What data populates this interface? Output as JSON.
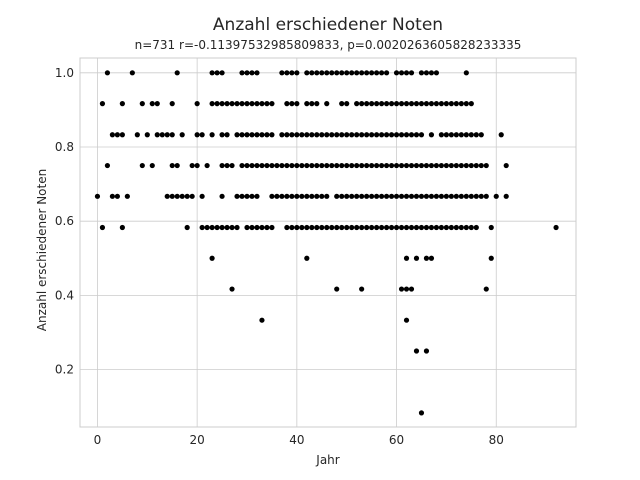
{
  "chart_data": {
    "type": "scatter",
    "title": "Anzahl erschiedener Noten",
    "subtitle": "n=731 r=-0.11397532985809833, p=0.0020263605828233335",
    "xlabel": "Jahr",
    "ylabel": "Anzahl erschiedener Noten",
    "xlim": [
      -3.5,
      96
    ],
    "ylim": [
      0.045,
      1.04
    ],
    "xticks": [
      0,
      20,
      40,
      60,
      80
    ],
    "yticks": [
      0.2,
      0.4,
      0.6,
      0.8,
      1.0
    ],
    "grid": true,
    "legend": "none",
    "point_color": "#000000",
    "points": [
      [
        0,
        0.667
      ],
      [
        1,
        0.583
      ],
      [
        1,
        0.917
      ],
      [
        2,
        1.0
      ],
      [
        2,
        0.75
      ],
      [
        3,
        0.833
      ],
      [
        3,
        0.667
      ],
      [
        4,
        0.833
      ],
      [
        4,
        0.667
      ],
      [
        5,
        0.917
      ],
      [
        5,
        0.833
      ],
      [
        5,
        0.583
      ],
      [
        6,
        0.667
      ],
      [
        7,
        1.0
      ],
      [
        8,
        0.833
      ],
      [
        9,
        0.917
      ],
      [
        9,
        0.75
      ],
      [
        10,
        0.833
      ],
      [
        11,
        0.917
      ],
      [
        11,
        0.75
      ],
      [
        12,
        0.917
      ],
      [
        12,
        0.833
      ],
      [
        13,
        0.833
      ],
      [
        14,
        0.833
      ],
      [
        14,
        0.667
      ],
      [
        15,
        0.917
      ],
      [
        15,
        0.833
      ],
      [
        15,
        0.75
      ],
      [
        15,
        0.667
      ],
      [
        16,
        1.0
      ],
      [
        16,
        0.75
      ],
      [
        16,
        0.667
      ],
      [
        17,
        0.833
      ],
      [
        17,
        0.667
      ],
      [
        18,
        0.667
      ],
      [
        18,
        0.583
      ],
      [
        19,
        0.75
      ],
      [
        19,
        0.667
      ],
      [
        20,
        0.917
      ],
      [
        20,
        0.833
      ],
      [
        20,
        0.75
      ],
      [
        21,
        0.833
      ],
      [
        21,
        0.667
      ],
      [
        21,
        0.583
      ],
      [
        22,
        0.75
      ],
      [
        22,
        0.583
      ],
      [
        23,
        1.0
      ],
      [
        23,
        0.917
      ],
      [
        23,
        0.833
      ],
      [
        23,
        0.583
      ],
      [
        23,
        0.5
      ],
      [
        24,
        1.0
      ],
      [
        24,
        0.917
      ],
      [
        24,
        0.583
      ],
      [
        25,
        1.0
      ],
      [
        25,
        0.917
      ],
      [
        25,
        0.833
      ],
      [
        25,
        0.75
      ],
      [
        25,
        0.667
      ],
      [
        25,
        0.583
      ],
      [
        26,
        0.917
      ],
      [
        26,
        0.833
      ],
      [
        26,
        0.75
      ],
      [
        26,
        0.583
      ],
      [
        27,
        0.917
      ],
      [
        27,
        0.75
      ],
      [
        27,
        0.583
      ],
      [
        27,
        0.417
      ],
      [
        28,
        0.917
      ],
      [
        28,
        0.833
      ],
      [
        28,
        0.667
      ],
      [
        28,
        0.583
      ],
      [
        29,
        1.0
      ],
      [
        29,
        0.917
      ],
      [
        29,
        0.833
      ],
      [
        29,
        0.75
      ],
      [
        29,
        0.667
      ],
      [
        30,
        1.0
      ],
      [
        30,
        0.917
      ],
      [
        30,
        0.833
      ],
      [
        30,
        0.75
      ],
      [
        30,
        0.667
      ],
      [
        30,
        0.583
      ],
      [
        31,
        1.0
      ],
      [
        31,
        0.917
      ],
      [
        31,
        0.833
      ],
      [
        31,
        0.75
      ],
      [
        31,
        0.667
      ],
      [
        31,
        0.583
      ],
      [
        32,
        1.0
      ],
      [
        32,
        0.917
      ],
      [
        32,
        0.833
      ],
      [
        32,
        0.75
      ],
      [
        32,
        0.667
      ],
      [
        32,
        0.583
      ],
      [
        33,
        0.917
      ],
      [
        33,
        0.833
      ],
      [
        33,
        0.75
      ],
      [
        33,
        0.583
      ],
      [
        33,
        0.333
      ],
      [
        34,
        0.917
      ],
      [
        34,
        0.833
      ],
      [
        34,
        0.75
      ],
      [
        34,
        0.583
      ],
      [
        35,
        0.917
      ],
      [
        35,
        0.833
      ],
      [
        35,
        0.75
      ],
      [
        35,
        0.667
      ],
      [
        35,
        0.583
      ],
      [
        36,
        0.75
      ],
      [
        36,
        0.667
      ],
      [
        37,
        1.0
      ],
      [
        37,
        0.833
      ],
      [
        37,
        0.75
      ],
      [
        37,
        0.667
      ],
      [
        38,
        1.0
      ],
      [
        38,
        0.917
      ],
      [
        38,
        0.833
      ],
      [
        38,
        0.75
      ],
      [
        38,
        0.667
      ],
      [
        38,
        0.583
      ],
      [
        39,
        1.0
      ],
      [
        39,
        0.917
      ],
      [
        39,
        0.833
      ],
      [
        39,
        0.75
      ],
      [
        39,
        0.667
      ],
      [
        39,
        0.583
      ],
      [
        40,
        1.0
      ],
      [
        40,
        0.917
      ],
      [
        40,
        0.833
      ],
      [
        40,
        0.75
      ],
      [
        40,
        0.667
      ],
      [
        40,
        0.583
      ],
      [
        41,
        0.833
      ],
      [
        41,
        0.75
      ],
      [
        41,
        0.667
      ],
      [
        41,
        0.583
      ],
      [
        42,
        1.0
      ],
      [
        42,
        0.917
      ],
      [
        42,
        0.833
      ],
      [
        42,
        0.75
      ],
      [
        42,
        0.667
      ],
      [
        42,
        0.583
      ],
      [
        42,
        0.5
      ],
      [
        43,
        1.0
      ],
      [
        43,
        0.917
      ],
      [
        43,
        0.833
      ],
      [
        43,
        0.75
      ],
      [
        43,
        0.667
      ],
      [
        43,
        0.583
      ],
      [
        44,
        1.0
      ],
      [
        44,
        0.917
      ],
      [
        44,
        0.833
      ],
      [
        44,
        0.75
      ],
      [
        44,
        0.667
      ],
      [
        44,
        0.583
      ],
      [
        45,
        1.0
      ],
      [
        45,
        0.833
      ],
      [
        45,
        0.75
      ],
      [
        45,
        0.667
      ],
      [
        45,
        0.583
      ],
      [
        46,
        1.0
      ],
      [
        46,
        0.917
      ],
      [
        46,
        0.833
      ],
      [
        46,
        0.75
      ],
      [
        46,
        0.667
      ],
      [
        46,
        0.583
      ],
      [
        47,
        1.0
      ],
      [
        47,
        0.833
      ],
      [
        47,
        0.75
      ],
      [
        47,
        0.583
      ],
      [
        48,
        1.0
      ],
      [
        48,
        0.833
      ],
      [
        48,
        0.75
      ],
      [
        48,
        0.667
      ],
      [
        48,
        0.583
      ],
      [
        48,
        0.417
      ],
      [
        49,
        1.0
      ],
      [
        49,
        0.917
      ],
      [
        49,
        0.833
      ],
      [
        49,
        0.75
      ],
      [
        49,
        0.667
      ],
      [
        49,
        0.583
      ],
      [
        50,
        1.0
      ],
      [
        50,
        0.917
      ],
      [
        50,
        0.833
      ],
      [
        50,
        0.75
      ],
      [
        50,
        0.667
      ],
      [
        50,
        0.583
      ],
      [
        51,
        1.0
      ],
      [
        51,
        0.833
      ],
      [
        51,
        0.75
      ],
      [
        51,
        0.667
      ],
      [
        51,
        0.583
      ],
      [
        52,
        1.0
      ],
      [
        52,
        0.917
      ],
      [
        52,
        0.833
      ],
      [
        52,
        0.75
      ],
      [
        52,
        0.667
      ],
      [
        52,
        0.583
      ],
      [
        53,
        1.0
      ],
      [
        53,
        0.917
      ],
      [
        53,
        0.833
      ],
      [
        53,
        0.75
      ],
      [
        53,
        0.667
      ],
      [
        53,
        0.583
      ],
      [
        53,
        0.417
      ],
      [
        54,
        1.0
      ],
      [
        54,
        0.917
      ],
      [
        54,
        0.833
      ],
      [
        54,
        0.75
      ],
      [
        54,
        0.667
      ],
      [
        54,
        0.583
      ],
      [
        55,
        1.0
      ],
      [
        55,
        0.917
      ],
      [
        55,
        0.833
      ],
      [
        55,
        0.75
      ],
      [
        55,
        0.667
      ],
      [
        55,
        0.583
      ],
      [
        56,
        1.0
      ],
      [
        56,
        0.917
      ],
      [
        56,
        0.833
      ],
      [
        56,
        0.75
      ],
      [
        56,
        0.667
      ],
      [
        56,
        0.583
      ],
      [
        57,
        1.0
      ],
      [
        57,
        0.917
      ],
      [
        57,
        0.833
      ],
      [
        57,
        0.75
      ],
      [
        57,
        0.667
      ],
      [
        57,
        0.583
      ],
      [
        58,
        1.0
      ],
      [
        58,
        0.917
      ],
      [
        58,
        0.833
      ],
      [
        58,
        0.75
      ],
      [
        58,
        0.667
      ],
      [
        58,
        0.583
      ],
      [
        59,
        0.917
      ],
      [
        59,
        0.833
      ],
      [
        59,
        0.75
      ],
      [
        59,
        0.667
      ],
      [
        59,
        0.583
      ],
      [
        60,
        1.0
      ],
      [
        60,
        0.917
      ],
      [
        60,
        0.833
      ],
      [
        60,
        0.75
      ],
      [
        60,
        0.667
      ],
      [
        60,
        0.583
      ],
      [
        61,
        1.0
      ],
      [
        61,
        0.917
      ],
      [
        61,
        0.833
      ],
      [
        61,
        0.75
      ],
      [
        61,
        0.667
      ],
      [
        61,
        0.583
      ],
      [
        61,
        0.417
      ],
      [
        62,
        1.0
      ],
      [
        62,
        0.917
      ],
      [
        62,
        0.833
      ],
      [
        62,
        0.75
      ],
      [
        62,
        0.667
      ],
      [
        62,
        0.583
      ],
      [
        62,
        0.5
      ],
      [
        62,
        0.417
      ],
      [
        62,
        0.333
      ],
      [
        63,
        1.0
      ],
      [
        63,
        0.917
      ],
      [
        63,
        0.833
      ],
      [
        63,
        0.75
      ],
      [
        63,
        0.667
      ],
      [
        63,
        0.583
      ],
      [
        63,
        0.417
      ],
      [
        64,
        0.917
      ],
      [
        64,
        0.833
      ],
      [
        64,
        0.75
      ],
      [
        64,
        0.667
      ],
      [
        64,
        0.583
      ],
      [
        64,
        0.5
      ],
      [
        64,
        0.25
      ],
      [
        65,
        1.0
      ],
      [
        65,
        0.917
      ],
      [
        65,
        0.833
      ],
      [
        65,
        0.75
      ],
      [
        65,
        0.667
      ],
      [
        65,
        0.583
      ],
      [
        65,
        0.083
      ],
      [
        66,
        1.0
      ],
      [
        66,
        0.917
      ],
      [
        66,
        0.75
      ],
      [
        66,
        0.667
      ],
      [
        66,
        0.583
      ],
      [
        66,
        0.5
      ],
      [
        66,
        0.25
      ],
      [
        67,
        1.0
      ],
      [
        67,
        0.917
      ],
      [
        67,
        0.833
      ],
      [
        67,
        0.75
      ],
      [
        67,
        0.667
      ],
      [
        67,
        0.583
      ],
      [
        67,
        0.5
      ],
      [
        68,
        1.0
      ],
      [
        68,
        0.917
      ],
      [
        68,
        0.75
      ],
      [
        68,
        0.667
      ],
      [
        68,
        0.583
      ],
      [
        69,
        0.917
      ],
      [
        69,
        0.833
      ],
      [
        69,
        0.75
      ],
      [
        69,
        0.667
      ],
      [
        69,
        0.583
      ],
      [
        70,
        0.917
      ],
      [
        70,
        0.833
      ],
      [
        70,
        0.75
      ],
      [
        70,
        0.667
      ],
      [
        70,
        0.583
      ],
      [
        71,
        0.917
      ],
      [
        71,
        0.833
      ],
      [
        71,
        0.75
      ],
      [
        71,
        0.667
      ],
      [
        71,
        0.583
      ],
      [
        72,
        0.917
      ],
      [
        72,
        0.833
      ],
      [
        72,
        0.75
      ],
      [
        72,
        0.667
      ],
      [
        72,
        0.583
      ],
      [
        73,
        0.917
      ],
      [
        73,
        0.833
      ],
      [
        73,
        0.75
      ],
      [
        73,
        0.667
      ],
      [
        73,
        0.583
      ],
      [
        74,
        1.0
      ],
      [
        74,
        0.917
      ],
      [
        74,
        0.833
      ],
      [
        74,
        0.75
      ],
      [
        74,
        0.667
      ],
      [
        74,
        0.583
      ],
      [
        75,
        0.917
      ],
      [
        75,
        0.833
      ],
      [
        75,
        0.75
      ],
      [
        75,
        0.667
      ],
      [
        75,
        0.583
      ],
      [
        76,
        0.833
      ],
      [
        76,
        0.75
      ],
      [
        76,
        0.667
      ],
      [
        76,
        0.583
      ],
      [
        77,
        0.833
      ],
      [
        77,
        0.75
      ],
      [
        77,
        0.667
      ],
      [
        78,
        0.75
      ],
      [
        78,
        0.667
      ],
      [
        78,
        0.417
      ],
      [
        79,
        0.583
      ],
      [
        79,
        0.5
      ],
      [
        80,
        0.667
      ],
      [
        81,
        0.833
      ],
      [
        82,
        0.75
      ],
      [
        82,
        0.667
      ],
      [
        92,
        0.583
      ]
    ]
  }
}
